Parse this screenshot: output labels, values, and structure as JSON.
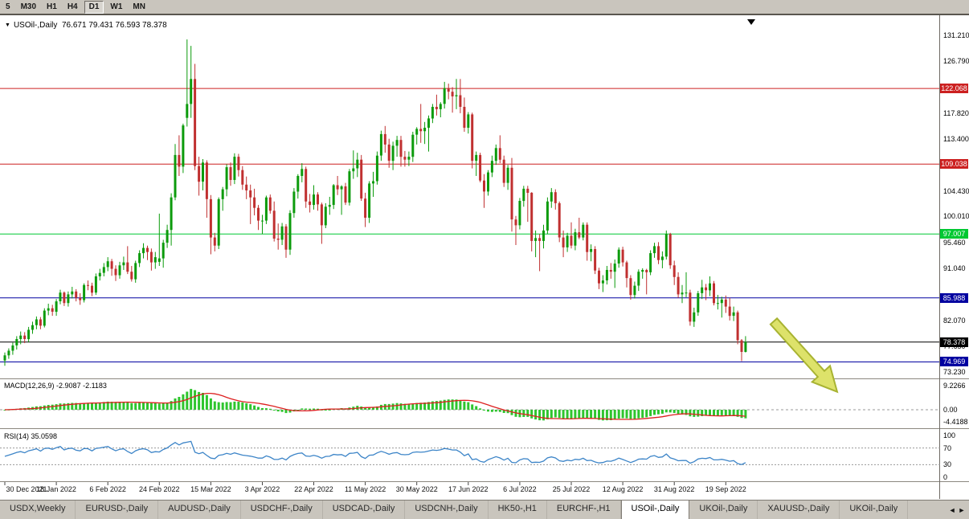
{
  "toolbar": {
    "timeframes": [
      {
        "label": "5",
        "active": false
      },
      {
        "label": "M30",
        "active": false
      },
      {
        "label": "H1",
        "active": false
      },
      {
        "label": "H4",
        "active": false
      },
      {
        "label": "D1",
        "active": true
      },
      {
        "label": "W1",
        "active": false
      },
      {
        "label": "MN",
        "active": false
      }
    ]
  },
  "chart_header": {
    "dropdown_icon": "▼",
    "symbol": "USOil-,Daily",
    "ohlc": "76.671 79.431 76.593 78.378"
  },
  "chart_data": {
    "type": "candlestick",
    "symbol": "USOil-,Daily",
    "timeframe": "Daily",
    "ylim": [
      71.8,
      133.0
    ],
    "x_tick_labels": [
      "30 Dec 2021",
      "18 Jan 2022",
      "6 Feb 2022",
      "24 Feb 2022",
      "15 Mar 2022",
      "3 Apr 2022",
      "22 Apr 2022",
      "11 May 2022",
      "30 May 2022",
      "17 Jun 2022",
      "6 Jul 2022",
      "25 Jul 2022",
      "12 Aug 2022",
      "31 Aug 2022",
      "19 Sep 2022"
    ],
    "bars_per_tick": 13,
    "price_axis_ticks": [
      {
        "label": "131.210",
        "price": 131.21
      },
      {
        "label": "126.790",
        "price": 126.79
      },
      {
        "label": "117.820",
        "price": 117.82
      },
      {
        "label": "113.400",
        "price": 113.4
      },
      {
        "label": "104.430",
        "price": 104.43
      },
      {
        "label": "100.010",
        "price": 100.01
      },
      {
        "label": "95.460",
        "price": 95.46
      },
      {
        "label": "91.040",
        "price": 91.04
      },
      {
        "label": "82.070",
        "price": 82.07
      },
      {
        "label": "77.650",
        "price": 77.65
      },
      {
        "label": "73.230",
        "price": 73.23
      }
    ],
    "hlines": [
      {
        "price": 122.068,
        "label": "122.068",
        "color": "#cc2020"
      },
      {
        "price": 109.038,
        "label": "109.038",
        "color": "#cc2020"
      },
      {
        "price": 97.007,
        "label": "97.007",
        "color": "#00c832"
      },
      {
        "price": 85.988,
        "label": "85.988",
        "color": "#0000a0"
      },
      {
        "price": 78.378,
        "label": "78.378",
        "color": "#000000",
        "current": true
      },
      {
        "price": 74.969,
        "label": "74.969",
        "color": "#0000a0"
      }
    ],
    "colors": {
      "bull": "#0c9b0c",
      "bear": "#c03030",
      "background": "#ffffff"
    },
    "ohlc": [
      [
        75.2,
        76.6,
        74.3,
        76.1
      ],
      [
        76.1,
        77.3,
        75.5,
        76.9
      ],
      [
        76.9,
        78.3,
        76.2,
        77.8
      ],
      [
        77.8,
        79.4,
        77.1,
        78.9
      ],
      [
        78.9,
        80.2,
        78.0,
        79.5
      ],
      [
        79.5,
        80.1,
        78.2,
        78.9
      ],
      [
        78.9,
        81.0,
        78.4,
        80.5
      ],
      [
        80.5,
        81.9,
        79.8,
        81.3
      ],
      [
        81.3,
        82.8,
        80.6,
        82.3
      ],
      [
        82.3,
        82.7,
        80.6,
        81.2
      ],
      [
        81.2,
        84.2,
        80.9,
        83.8
      ],
      [
        83.8,
        85.0,
        83.0,
        84.2
      ],
      [
        84.2,
        84.8,
        82.9,
        83.6
      ],
      [
        83.6,
        85.8,
        82.9,
        85.4
      ],
      [
        85.4,
        87.4,
        84.9,
        86.9
      ],
      [
        86.9,
        87.1,
        84.6,
        85.1
      ],
      [
        85.1,
        87.1,
        84.5,
        86.6
      ],
      [
        86.6,
        87.9,
        85.9,
        87.1
      ],
      [
        87.1,
        87.5,
        85.4,
        86.0
      ],
      [
        86.0,
        86.8,
        84.8,
        85.6
      ],
      [
        85.6,
        88.5,
        85.2,
        88.2
      ],
      [
        88.2,
        89.0,
        87.3,
        88.1
      ],
      [
        88.1,
        88.6,
        86.3,
        86.9
      ],
      [
        86.9,
        90.2,
        86.5,
        89.7
      ],
      [
        89.7,
        91.0,
        89.0,
        90.3
      ],
      [
        90.3,
        92.0,
        89.7,
        91.3
      ],
      [
        91.3,
        93.0,
        90.6,
        92.3
      ],
      [
        92.3,
        92.7,
        89.8,
        91.0
      ],
      [
        91.0,
        91.6,
        88.9,
        89.9
      ],
      [
        89.9,
        92.2,
        89.3,
        91.6
      ],
      [
        91.6,
        93.1,
        90.8,
        92.1
      ],
      [
        92.1,
        94.9,
        90.1,
        90.5
      ],
      [
        90.5,
        91.5,
        88.8,
        89.2
      ],
      [
        89.2,
        92.4,
        88.6,
        92.0
      ],
      [
        92.0,
        94.2,
        91.3,
        93.7
      ],
      [
        93.7,
        95.4,
        92.8,
        94.6
      ],
      [
        94.6,
        95.0,
        92.5,
        93.9
      ],
      [
        93.9,
        94.5,
        90.7,
        92.1
      ],
      [
        92.1,
        93.9,
        91.0,
        93.0
      ],
      [
        92.2,
        100.5,
        91.5,
        92.8
      ],
      [
        92.8,
        96.0,
        91.2,
        95.5
      ],
      [
        95.5,
        98.6,
        94.6,
        97.7
      ],
      [
        97.7,
        104.0,
        95.0,
        103.3
      ],
      [
        103.3,
        112.5,
        102.8,
        110.6
      ],
      [
        110.6,
        114.0,
        107.0,
        108.6
      ],
      [
        108.6,
        116.0,
        107.5,
        115.7
      ],
      [
        117.0,
        130.5,
        115.5,
        119.4
      ],
      [
        119.4,
        129.4,
        117.0,
        123.7
      ],
      [
        123.7,
        126.3,
        108.0,
        108.7
      ],
      [
        108.7,
        110.3,
        103.6,
        106.0
      ],
      [
        106.0,
        109.9,
        104.5,
        109.3
      ],
      [
        109.3,
        109.7,
        99.8,
        103.0
      ],
      [
        103.0,
        103.7,
        93.5,
        96.4
      ],
      [
        96.4,
        97.2,
        94.0,
        95.0
      ],
      [
        95.0,
        103.3,
        94.4,
        103.0
      ],
      [
        103.0,
        105.1,
        101.0,
        104.7
      ],
      [
        104.7,
        109.0,
        103.5,
        108.5
      ],
      [
        108.5,
        109.3,
        105.3,
        106.3
      ],
      [
        106.3,
        110.9,
        105.6,
        110.3
      ],
      [
        110.3,
        110.8,
        106.9,
        108.0
      ],
      [
        108.0,
        108.7,
        104.6,
        105.5
      ],
      [
        105.5,
        106.9,
        103.0,
        104.5
      ],
      [
        104.5,
        105.5,
        98.7,
        103.3
      ],
      [
        103.3,
        104.8,
        100.2,
        101.5
      ],
      [
        101.5,
        102.0,
        97.7,
        99.3
      ],
      [
        99.3,
        100.3,
        97.0,
        99.3
      ],
      [
        99.3,
        103.6,
        98.7,
        103.3
      ],
      [
        103.3,
        103.8,
        100.5,
        101.0
      ],
      [
        101.0,
        102.6,
        95.7,
        96.2
      ],
      [
        96.2,
        98.8,
        94.3,
        96.0
      ],
      [
        96.0,
        98.9,
        95.1,
        98.3
      ],
      [
        98.3,
        98.7,
        92.9,
        94.3
      ],
      [
        94.3,
        101.1,
        93.4,
        100.6
      ],
      [
        100.6,
        104.9,
        99.8,
        104.3
      ],
      [
        104.3,
        107.3,
        103.1,
        107.0
      ],
      [
        107.0,
        109.2,
        105.9,
        108.2
      ],
      [
        108.2,
        108.6,
        101.5,
        102.6
      ],
      [
        102.6,
        103.9,
        100.7,
        102.0
      ],
      [
        102.0,
        105.4,
        101.2,
        103.8
      ],
      [
        103.8,
        104.2,
        101.0,
        102.1
      ],
      [
        102.1,
        102.4,
        95.3,
        98.5
      ],
      [
        98.5,
        102.3,
        98.0,
        101.7
      ],
      [
        101.7,
        103.4,
        100.3,
        102.0
      ],
      [
        102.0,
        105.6,
        101.3,
        105.4
      ],
      [
        105.4,
        107.0,
        103.7,
        104.7
      ],
      [
        104.7,
        105.4,
        100.3,
        105.2
      ],
      [
        105.2,
        105.8,
        102.0,
        102.4
      ],
      [
        102.4,
        108.2,
        101.9,
        107.8
      ],
      [
        107.8,
        111.4,
        106.5,
        108.3
      ],
      [
        108.3,
        111.0,
        106.8,
        109.8
      ],
      [
        109.8,
        110.6,
        102.7,
        103.1
      ],
      [
        103.1,
        104.1,
        98.2,
        99.8
      ],
      [
        99.8,
        106.1,
        98.9,
        105.7
      ],
      [
        105.7,
        107.7,
        103.4,
        106.1
      ],
      [
        106.1,
        111.2,
        105.5,
        110.5
      ],
      [
        110.5,
        114.8,
        109.6,
        114.2
      ],
      [
        114.2,
        115.6,
        111.0,
        112.4
      ],
      [
        112.4,
        113.4,
        108.4,
        109.6
      ],
      [
        109.6,
        112.9,
        108.0,
        112.2
      ],
      [
        112.2,
        113.9,
        110.3,
        113.2
      ],
      [
        113.2,
        113.9,
        108.6,
        110.3
      ],
      [
        110.3,
        111.3,
        108.6,
        109.8
      ],
      [
        109.8,
        111.2,
        108.7,
        110.3
      ],
      [
        110.3,
        114.6,
        109.4,
        114.1
      ],
      [
        114.1,
        115.4,
        112.4,
        115.1
      ],
      [
        115.1,
        119.4,
        112.7,
        114.7
      ],
      [
        114.7,
        116.3,
        112.5,
        115.3
      ],
      [
        115.3,
        117.4,
        111.2,
        116.9
      ],
      [
        116.9,
        119.4,
        116.1,
        118.9
      ],
      [
        118.9,
        121.0,
        117.4,
        118.5
      ],
      [
        118.5,
        119.7,
        117.1,
        119.4
      ],
      [
        119.4,
        123.2,
        118.6,
        122.1
      ],
      [
        122.1,
        122.9,
        120.2,
        121.5
      ],
      [
        121.5,
        122.3,
        117.9,
        120.7
      ],
      [
        120.7,
        123.7,
        118.5,
        120.9
      ],
      [
        120.9,
        123.7,
        117.8,
        118.9
      ],
      [
        118.9,
        120.5,
        114.6,
        115.3
      ],
      [
        115.3,
        118.0,
        114.3,
        117.6
      ],
      [
        117.6,
        117.9,
        108.3,
        109.6
      ],
      [
        109.6,
        111.2,
        107.0,
        110.6
      ],
      [
        110.6,
        111.0,
        105.9,
        106.2
      ],
      [
        106.2,
        107.3,
        101.5,
        104.3
      ],
      [
        104.3,
        108.0,
        103.6,
        107.6
      ],
      [
        107.6,
        110.5,
        106.8,
        109.6
      ],
      [
        109.6,
        112.4,
        108.9,
        111.8
      ],
      [
        111.8,
        114.0,
        109.2,
        109.8
      ],
      [
        109.8,
        110.5,
        105.1,
        105.8
      ],
      [
        105.8,
        108.9,
        104.6,
        108.4
      ],
      [
        108.4,
        110.1,
        97.4,
        99.5
      ],
      [
        99.5,
        100.1,
        95.1,
        98.5
      ],
      [
        98.5,
        103.2,
        97.8,
        102.7
      ],
      [
        102.7,
        105.3,
        101.7,
        104.8
      ],
      [
        104.8,
        105.3,
        99.1,
        104.1
      ],
      [
        104.1,
        104.2,
        94.0,
        95.8
      ],
      [
        95.8,
        97.6,
        93.0,
        96.3
      ],
      [
        96.3,
        97.0,
        90.6,
        95.8
      ],
      [
        95.8,
        98.6,
        94.5,
        97.6
      ],
      [
        97.6,
        103.3,
        97.0,
        102.6
      ],
      [
        102.6,
        104.9,
        101.5,
        104.2
      ],
      [
        104.2,
        104.7,
        101.2,
        102.3
      ],
      [
        102.3,
        102.6,
        95.6,
        96.4
      ],
      [
        96.4,
        97.6,
        93.0,
        94.7
      ],
      [
        94.7,
        97.2,
        93.9,
        96.7
      ],
      [
        96.7,
        99.0,
        94.5,
        95.0
      ],
      [
        95.0,
        97.9,
        94.2,
        97.3
      ],
      [
        97.3,
        99.8,
        96.1,
        96.4
      ],
      [
        96.4,
        99.0,
        95.9,
        98.6
      ],
      [
        98.6,
        99.0,
        92.4,
        93.9
      ],
      [
        93.9,
        95.2,
        92.3,
        94.4
      ],
      [
        94.4,
        94.9,
        90.1,
        90.7
      ],
      [
        90.7,
        91.2,
        87.5,
        88.5
      ],
      [
        88.5,
        89.9,
        87.0,
        89.0
      ],
      [
        89.0,
        91.5,
        88.3,
        90.8
      ],
      [
        90.8,
        92.0,
        89.3,
        90.5
      ],
      [
        90.5,
        92.6,
        87.7,
        91.9
      ],
      [
        91.9,
        94.7,
        91.2,
        94.3
      ],
      [
        94.3,
        94.8,
        91.4,
        92.1
      ],
      [
        92.1,
        92.4,
        87.8,
        89.4
      ],
      [
        89.4,
        89.9,
        85.7,
        86.5
      ],
      [
        86.5,
        88.8,
        85.9,
        88.1
      ],
      [
        88.1,
        90.9,
        87.2,
        90.5
      ],
      [
        90.5,
        91.1,
        89.3,
        90.8
      ],
      [
        90.8,
        91.0,
        86.6,
        90.4
      ],
      [
        90.4,
        94.2,
        89.9,
        93.7
      ],
      [
        93.7,
        95.5,
        92.9,
        94.9
      ],
      [
        94.9,
        95.6,
        91.8,
        92.5
      ],
      [
        92.5,
        94.0,
        91.1,
        93.1
      ],
      [
        93.1,
        97.6,
        92.6,
        97.0
      ],
      [
        97.0,
        97.2,
        91.0,
        91.6
      ],
      [
        91.6,
        92.4,
        88.2,
        89.6
      ],
      [
        89.6,
        90.4,
        86.0,
        86.6
      ],
      [
        86.6,
        88.2,
        85.1,
        86.9
      ],
      [
        86.9,
        90.4,
        86.1,
        86.9
      ],
      [
        86.9,
        87.4,
        81.2,
        81.9
      ],
      [
        81.9,
        84.3,
        81.0,
        83.5
      ],
      [
        83.5,
        87.2,
        82.9,
        86.8
      ],
      [
        86.8,
        89.1,
        85.8,
        87.8
      ],
      [
        87.8,
        88.4,
        85.6,
        87.3
      ],
      [
        87.3,
        89.7,
        86.3,
        88.5
      ],
      [
        88.5,
        88.9,
        84.7,
        85.1
      ],
      [
        85.1,
        86.5,
        84.0,
        85.1
      ],
      [
        85.1,
        86.2,
        82.6,
        85.7
      ],
      [
        85.7,
        86.4,
        83.4,
        84.5
      ],
      [
        84.5,
        86.0,
        82.1,
        82.9
      ],
      [
        82.9,
        84.5,
        82.0,
        83.5
      ],
      [
        83.5,
        83.8,
        78.0,
        78.7
      ],
      [
        78.7,
        78.9,
        75.1,
        76.7
      ],
      [
        76.7,
        79.4,
        76.6,
        78.4
      ]
    ],
    "indicators": {
      "macd": {
        "label": "MACD(12,26,9)",
        "values": "-2.9087 -2.1183",
        "fast": 12,
        "slow": 26,
        "signal": 9,
        "axis_ticks": [
          {
            "label": "9.2266",
            "value": 9.2266
          },
          {
            "label": "0.00",
            "value": 0
          },
          {
            "label": "-4.4188",
            "value": -4.4188
          }
        ],
        "histogram_color": "#2ec52e",
        "signal_color": "#dd2020"
      },
      "rsi": {
        "label": "RSI(14)",
        "value": "35.0598",
        "period": 14,
        "axis_ticks": [
          {
            "label": "100",
            "value": 100
          },
          {
            "label": "70",
            "value": 70
          },
          {
            "label": "30",
            "value": 30
          },
          {
            "label": "0",
            "value": 0
          }
        ],
        "levels": [
          70,
          30
        ],
        "line_color": "#3d85c8"
      }
    }
  },
  "annotations": {
    "arrow": {
      "direction": "down-right",
      "fill": "#dde26a",
      "outline": "#a8b332"
    }
  },
  "icons": {
    "shift_marker": "black-down-triangle"
  },
  "tabs": {
    "scroll_left": "◄",
    "scroll_right": "►",
    "items": [
      {
        "label": "USDX,Weekly",
        "active": false
      },
      {
        "label": "EURUSD-,Daily",
        "active": false
      },
      {
        "label": "AUDUSD-,Daily",
        "active": false
      },
      {
        "label": "USDCHF-,Daily",
        "active": false
      },
      {
        "label": "USDCAD-,Daily",
        "active": false
      },
      {
        "label": "USDCNH-,Daily",
        "active": false
      },
      {
        "label": "HK50-,H1",
        "active": false
      },
      {
        "label": "EURCHF-,H1",
        "active": false
      },
      {
        "label": "USOil-,Daily",
        "active": true
      },
      {
        "label": "UKOil-,Daily",
        "active": false
      },
      {
        "label": "XAUUSD-,Daily",
        "active": false
      },
      {
        "label": "UKOil-,Daily",
        "active": false
      }
    ]
  }
}
